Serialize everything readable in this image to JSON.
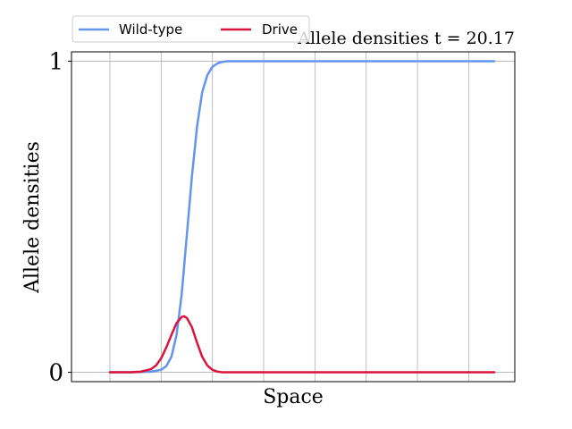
{
  "chart_data": {
    "type": "line",
    "title": "Allele densities t = 20.17",
    "xlabel": "Space",
    "ylabel": "Allele densities",
    "xlim": [
      -0.75,
      7.9
    ],
    "ylim": [
      -0.03,
      1.03
    ],
    "xticks": [
      0,
      1,
      2,
      3,
      4,
      5,
      6,
      7
    ],
    "yticks": [
      0,
      1
    ],
    "ytick_labels": [
      "0",
      "1"
    ],
    "grid": "vertical",
    "legend": {
      "placement": "top-left",
      "entries": [
        "Wild-type",
        "Drive"
      ]
    },
    "series": [
      {
        "name": "Wild-type",
        "color": "#6495ED",
        "x": [
          0,
          0.4,
          0.8,
          1.0,
          1.1,
          1.2,
          1.3,
          1.4,
          1.5,
          1.6,
          1.7,
          1.8,
          1.9,
          2.0,
          2.1,
          2.2,
          2.3,
          2.5,
          3.0,
          4.0,
          5.0,
          6.0,
          7.0,
          7.5
        ],
        "y": [
          0,
          0.0,
          0.002,
          0.008,
          0.02,
          0.05,
          0.12,
          0.25,
          0.44,
          0.63,
          0.79,
          0.9,
          0.955,
          0.982,
          0.993,
          0.998,
          1.0,
          1.0,
          1.0,
          1.0,
          1.0,
          1.0,
          1.0,
          1.0
        ]
      },
      {
        "name": "Drive",
        "color": "#DC143C",
        "x": [
          0,
          0.4,
          0.6,
          0.8,
          0.9,
          1.0,
          1.1,
          1.2,
          1.3,
          1.4,
          1.45,
          1.5,
          1.6,
          1.7,
          1.8,
          1.9,
          2.0,
          2.1,
          2.2,
          2.5,
          3.0,
          4.0,
          5.0,
          6.0,
          7.0,
          7.5
        ],
        "y": [
          0,
          0.0,
          0.002,
          0.01,
          0.022,
          0.045,
          0.08,
          0.12,
          0.158,
          0.178,
          0.18,
          0.175,
          0.145,
          0.095,
          0.05,
          0.022,
          0.008,
          0.002,
          0.0,
          0.0,
          0.0,
          0.0,
          0.0,
          0.0,
          0.0,
          0.0
        ]
      }
    ]
  }
}
